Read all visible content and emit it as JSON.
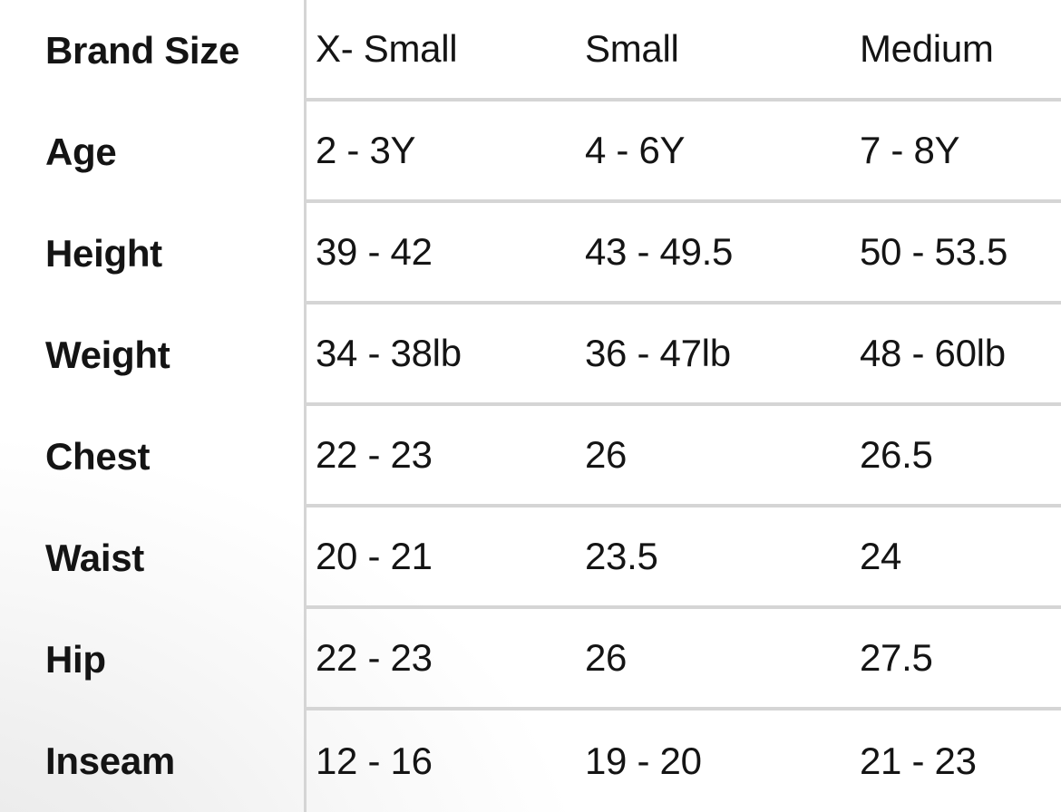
{
  "table": {
    "corner_label": "Brand Size",
    "column_headers": [
      "X- Small",
      "Small",
      "Medium"
    ],
    "rows": [
      {
        "label": "Age",
        "values": [
          "2 - 3Y",
          "4 - 6Y",
          "7 - 8Y"
        ]
      },
      {
        "label": "Height",
        "values": [
          "39 - 42",
          "43 - 49.5",
          "50 - 53.5"
        ]
      },
      {
        "label": "Weight",
        "values": [
          "34 - 38lb",
          "36 - 47lb",
          "48 - 60lb"
        ]
      },
      {
        "label": "Chest",
        "values": [
          "22 - 23",
          "26",
          "26.5"
        ]
      },
      {
        "label": "Waist",
        "values": [
          "20 - 21",
          "23.5",
          "24"
        ]
      },
      {
        "label": "Hip",
        "values": [
          "22 - 23",
          "26",
          "27.5"
        ]
      },
      {
        "label": "Inseam",
        "values": [
          "12 - 16",
          "19 - 20",
          "21 - 23"
        ]
      }
    ],
    "colors": {
      "text": "#141414",
      "grid_line": "#d5d5d5",
      "corner_shade": "#e7e7e7"
    }
  }
}
